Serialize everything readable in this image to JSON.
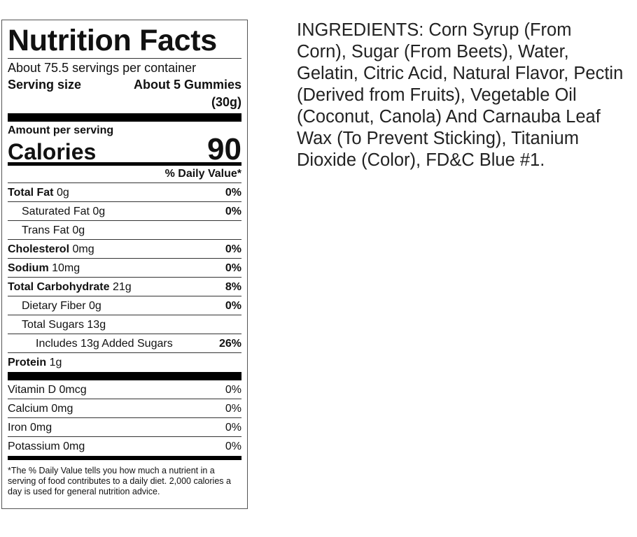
{
  "label": {
    "title": "Nutrition Facts",
    "servings": "About 75.5 servings per container",
    "serving_size_label": "Serving size",
    "serving_size_value": "About 5 Gummies",
    "serving_size_weight": "(30g)",
    "amount_per_serving": "Amount per serving",
    "calories_label": "Calories",
    "calories_value": "90",
    "dv_header": "% Daily Value*",
    "nutrients": [
      {
        "name": "Total Fat",
        "amount": "0g",
        "dv": "0%"
      },
      {
        "name": "Saturated Fat",
        "amount": "0g",
        "dv": "0%"
      },
      {
        "name": "Trans Fat",
        "amount": "0g",
        "dv": ""
      },
      {
        "name": "Cholesterol",
        "amount": "0mg",
        "dv": "0%"
      },
      {
        "name": "Sodium",
        "amount": "10mg",
        "dv": "0%"
      },
      {
        "name": "Total Carbohydrate",
        "amount": "21g",
        "dv": "8%"
      },
      {
        "name": "Dietary Fiber",
        "amount": "0g",
        "dv": "0%"
      },
      {
        "name": "Total Sugars",
        "amount": "13g",
        "dv": ""
      },
      {
        "name": "Includes 13g Added Sugars",
        "amount": "",
        "dv": "26%"
      },
      {
        "name": "Protein",
        "amount": "1g",
        "dv": ""
      }
    ],
    "vitamins": [
      {
        "name": "Vitamin D",
        "amount": "0mcg",
        "dv": "0%"
      },
      {
        "name": "Calcium",
        "amount": "0mg",
        "dv": "0%"
      },
      {
        "name": "Iron",
        "amount": "0mg",
        "dv": "0%"
      },
      {
        "name": "Potassium",
        "amount": "0mg",
        "dv": "0%"
      }
    ],
    "footnote": "*The % Daily Value tells you how much a nutrient in a serving of food contributes to a daily diet. 2,000 calories a day is used for general nutrition advice."
  },
  "ingredients": "INGREDIENTS: Corn Syrup (From Corn), Sugar (From Beets), Water, Gelatin, Citric Acid, Natural Flavor, Pectin (Derived from Fruits), Vegetable Oil (Coconut, Canola) And Carnauba Leaf Wax (To Prevent Sticking), Titanium Dioxide (Color), FD&C Blue #1."
}
